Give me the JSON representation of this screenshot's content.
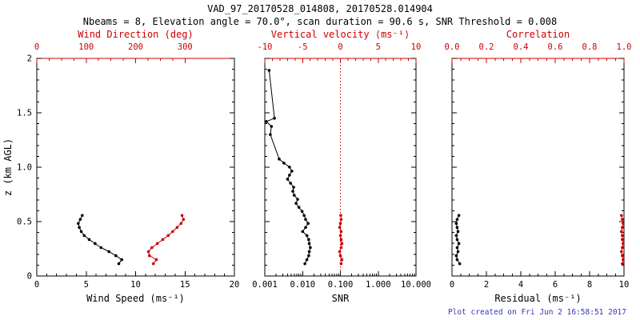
{
  "header": {
    "title": "VAD_97_20170528_014808, 20170528.014904",
    "subtitle": "Nbeams = 8, Elevation angle = 70.0°, scan duration = 90.6 s, SNR Threshold = 0.008"
  },
  "footer": {
    "timestamp": "Plot created on Fri Jun  2 16:58:51 2017"
  },
  "colors": {
    "primary": "#000000",
    "secondary": "#cc0000",
    "timestamp": "#3535bb"
  },
  "chart_data": [
    {
      "type": "line",
      "name": "wind",
      "xlabel": "Wind Speed (ms⁻¹)",
      "x2label": "Wind Direction (deg)",
      "ylabel": "z (km AGL)",
      "xscale": "linear",
      "xlim": [
        0,
        20
      ],
      "x2lim": [
        0,
        400
      ],
      "ylim": [
        0,
        2
      ],
      "xticks": [
        0,
        5,
        10,
        15,
        20
      ],
      "xtick_labels": [
        "0",
        "5",
        "10",
        "15",
        "20"
      ],
      "xminor_div": 5,
      "x2ticks": [
        0,
        100,
        200,
        300
      ],
      "x2tick_labels": [
        "0",
        "100",
        "200",
        "300"
      ],
      "x2minor_div": 4,
      "yticks": [
        0,
        0.5,
        1.0,
        1.5,
        2.0
      ],
      "ytick_labels": [
        "0",
        "0.5",
        "1.0",
        "1.5",
        "2"
      ],
      "series": [
        {
          "name": "wind-speed",
          "color": "black",
          "axis": "bottom",
          "points": [
            [
              8.3,
              0.113
            ],
            [
              8.6,
              0.15
            ],
            [
              8.0,
              0.187
            ],
            [
              7.3,
              0.224
            ],
            [
              6.5,
              0.261
            ],
            [
              5.9,
              0.298
            ],
            [
              5.3,
              0.335
            ],
            [
              4.8,
              0.372
            ],
            [
              4.5,
              0.409
            ],
            [
              4.3,
              0.446
            ],
            [
              4.2,
              0.483
            ],
            [
              4.4,
              0.52
            ],
            [
              4.6,
              0.557
            ]
          ]
        },
        {
          "name": "wind-direction",
          "color": "red",
          "axis": "top",
          "points": [
            [
              236,
              0.113
            ],
            [
              242,
              0.15
            ],
            [
              228,
              0.187
            ],
            [
              226,
              0.224
            ],
            [
              233,
              0.261
            ],
            [
              244,
              0.298
            ],
            [
              255,
              0.335
            ],
            [
              266,
              0.372
            ],
            [
              275,
              0.409
            ],
            [
              284,
              0.446
            ],
            [
              292,
              0.483
            ],
            [
              297,
              0.52
            ],
            [
              294,
              0.557
            ]
          ]
        }
      ]
    },
    {
      "type": "line",
      "name": "snr",
      "xlabel": "SNR",
      "x2label": "Vertical velocity ⟨ms⁻¹⟩",
      "xscale": "log",
      "xlim": [
        0.001,
        10
      ],
      "x2lim": [
        -10,
        10
      ],
      "ylim": [
        0,
        2
      ],
      "xticks": [
        0.001,
        0.01,
        0.1,
        1.0,
        10.0
      ],
      "xtick_labels": [
        "0.001",
        "0.010",
        "0.100",
        "1.000",
        "10.000"
      ],
      "x2ticks": [
        -10,
        -5,
        0,
        5,
        10
      ],
      "x2tick_labels": [
        "-10",
        "-5",
        "0",
        "5",
        "10"
      ],
      "x2minor_div": 5,
      "yticks": [
        0,
        0.5,
        1.0,
        1.5,
        2.0
      ],
      "refline": {
        "axis": "top",
        "value": 0,
        "style": "dotted",
        "color": "red"
      },
      "series": [
        {
          "name": "snr-profile",
          "color": "black",
          "axis": "bottom",
          "points": [
            [
              0.0115,
              0.113
            ],
            [
              0.013,
              0.15
            ],
            [
              0.0145,
              0.187
            ],
            [
              0.015,
              0.224
            ],
            [
              0.016,
              0.261
            ],
            [
              0.015,
              0.298
            ],
            [
              0.0145,
              0.335
            ],
            [
              0.013,
              0.372
            ],
            [
              0.01,
              0.409
            ],
            [
              0.012,
              0.446
            ],
            [
              0.014,
              0.483
            ],
            [
              0.012,
              0.52
            ],
            [
              0.011,
              0.557
            ],
            [
              0.0097,
              0.594
            ],
            [
              0.008,
              0.631
            ],
            [
              0.0067,
              0.668
            ],
            [
              0.0074,
              0.705
            ],
            [
              0.006,
              0.742
            ],
            [
              0.0055,
              0.779
            ],
            [
              0.0058,
              0.816
            ],
            [
              0.0048,
              0.853
            ],
            [
              0.004,
              0.89
            ],
            [
              0.0045,
              0.927
            ],
            [
              0.0052,
              0.964
            ],
            [
              0.0045,
              1.001
            ],
            [
              0.0032,
              1.038
            ],
            [
              0.0024,
              1.075
            ],
            [
              0.0014,
              1.3
            ],
            [
              0.0015,
              1.375
            ],
            [
              0.0011,
              1.42
            ],
            [
              0.0018,
              1.45
            ],
            [
              0.0013,
              1.89
            ]
          ]
        },
        {
          "name": "vertical-velocity",
          "color": "red",
          "axis": "top",
          "points": [
            [
              0.1,
              0.113
            ],
            [
              0.2,
              0.15
            ],
            [
              0.0,
              0.187
            ],
            [
              -0.1,
              0.224
            ],
            [
              0.1,
              0.261
            ],
            [
              0.2,
              0.298
            ],
            [
              0.1,
              0.335
            ],
            [
              0.0,
              0.372
            ],
            [
              0.1,
              0.409
            ],
            [
              -0.1,
              0.446
            ],
            [
              0.0,
              0.483
            ],
            [
              0.1,
              0.52
            ],
            [
              0.05,
              0.557
            ]
          ]
        }
      ]
    },
    {
      "type": "line",
      "name": "residual",
      "xlabel": "Residual (ms⁻¹)",
      "x2label": "Correlation",
      "xscale": "linear",
      "xlim": [
        0,
        10
      ],
      "x2lim": [
        0,
        1
      ],
      "ylim": [
        0,
        2
      ],
      "xticks": [
        0,
        2,
        4,
        6,
        8,
        10
      ],
      "xtick_labels": [
        "0",
        "2",
        "4",
        "6",
        "8",
        "10"
      ],
      "xminor_div": 4,
      "x2ticks": [
        0,
        0.2,
        0.4,
        0.6,
        0.8,
        1.0
      ],
      "x2tick_labels": [
        "0.0",
        "0.2",
        "0.4",
        "0.6",
        "0.8",
        "1.0"
      ],
      "x2minor_div": 4,
      "yticks": [
        0,
        0.5,
        1.0,
        1.5,
        2.0
      ],
      "series": [
        {
          "name": "residual-profile",
          "color": "black",
          "axis": "bottom",
          "points": [
            [
              0.45,
              0.113
            ],
            [
              0.3,
              0.15
            ],
            [
              0.25,
              0.187
            ],
            [
              0.35,
              0.224
            ],
            [
              0.3,
              0.261
            ],
            [
              0.4,
              0.298
            ],
            [
              0.3,
              0.335
            ],
            [
              0.25,
              0.372
            ],
            [
              0.35,
              0.409
            ],
            [
              0.3,
              0.446
            ],
            [
              0.25,
              0.483
            ],
            [
              0.3,
              0.52
            ],
            [
              0.4,
              0.557
            ]
          ]
        },
        {
          "name": "correlation-profile",
          "color": "red",
          "axis": "top",
          "points": [
            [
              0.99,
              0.113
            ],
            [
              0.995,
              0.15
            ],
            [
              0.99,
              0.187
            ],
            [
              0.985,
              0.224
            ],
            [
              0.99,
              0.261
            ],
            [
              0.995,
              0.298
            ],
            [
              0.99,
              0.335
            ],
            [
              0.99,
              0.372
            ],
            [
              0.985,
              0.409
            ],
            [
              0.99,
              0.446
            ],
            [
              0.995,
              0.483
            ],
            [
              0.99,
              0.52
            ],
            [
              0.985,
              0.557
            ]
          ]
        }
      ]
    }
  ]
}
